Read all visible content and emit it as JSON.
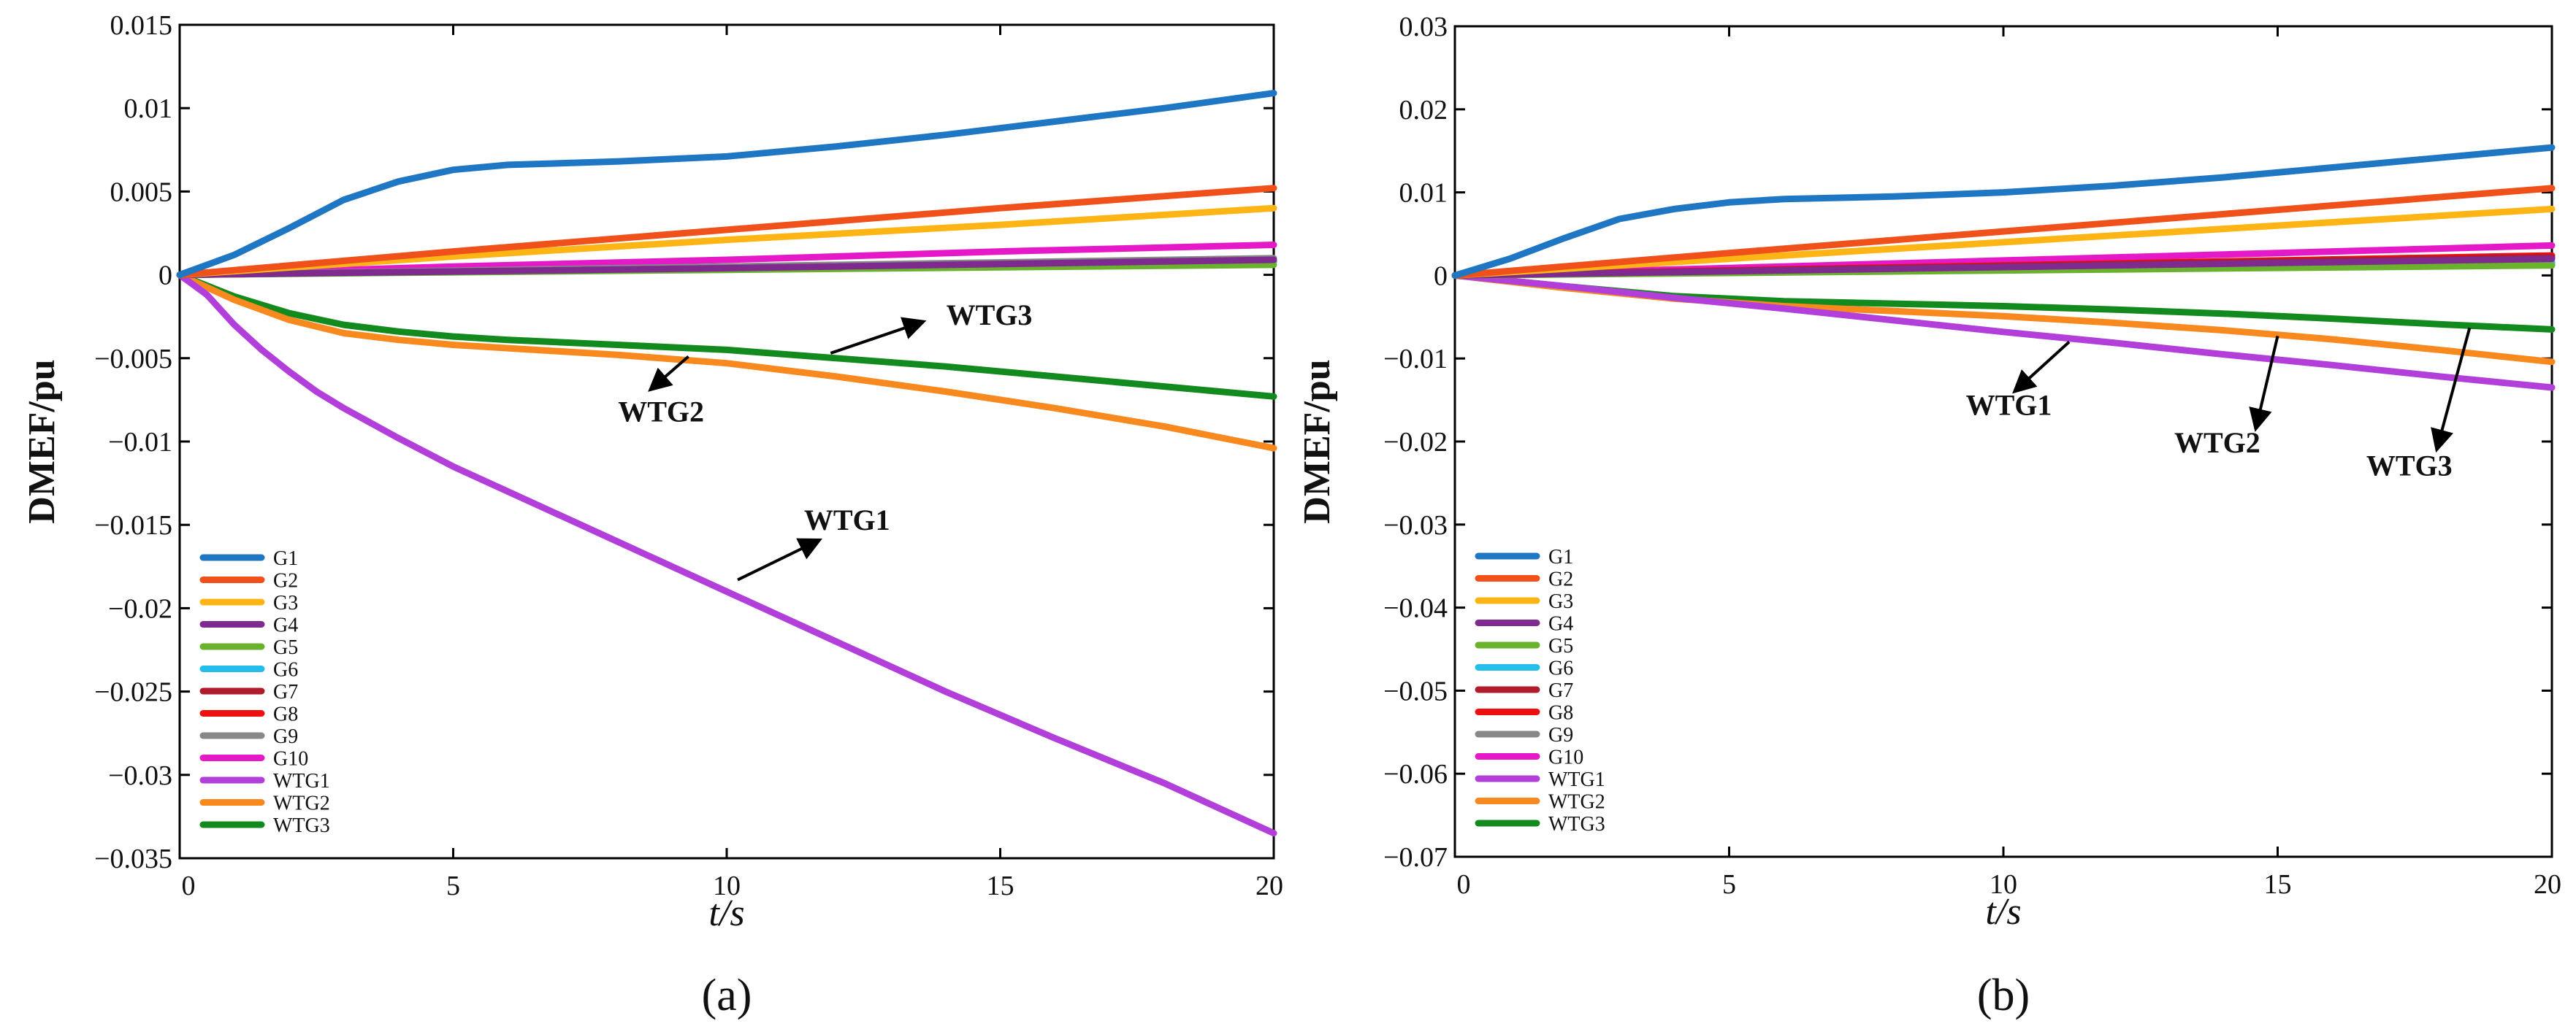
{
  "chart_data": [
    {
      "panel_label": "(a)",
      "type": "line",
      "xlabel": "t/s",
      "ylabel": "DMEF/pu",
      "xlim": [
        0,
        20
      ],
      "ylim": [
        -0.035,
        0.015
      ],
      "xticks": [
        "0",
        "5",
        "10",
        "15",
        "20"
      ],
      "yticks": [
        "0.015",
        "0.01",
        "0.005",
        "0",
        "−0.005",
        "−0.01",
        "−0.015",
        "−0.02",
        "−0.025",
        "−0.03",
        "−0.035"
      ],
      "legend": [
        "G1",
        "G2",
        "G3",
        "G4",
        "G5",
        "G6",
        "G7",
        "G8",
        "G9",
        "G10",
        "WTG1",
        "WTG2",
        "WTG3"
      ],
      "legend_position": "bottom-left",
      "series": [
        {
          "name": "G1",
          "color": "#1f77c4",
          "x": [
            0,
            1,
            2,
            3,
            4,
            5,
            6,
            8,
            10,
            12,
            14,
            16,
            18,
            20
          ],
          "values": [
            0,
            0.0012,
            0.0028,
            0.0045,
            0.0056,
            0.0063,
            0.0066,
            0.0068,
            0.0071,
            0.0077,
            0.0084,
            0.0092,
            0.01,
            0.0109
          ]
        },
        {
          "name": "G2",
          "color": "#f0501a",
          "x": [
            0,
            5,
            10,
            15,
            20
          ],
          "values": [
            0,
            0.0014,
            0.0027,
            0.004,
            0.0052
          ]
        },
        {
          "name": "G3",
          "color": "#fdb515",
          "x": [
            0,
            5,
            10,
            15,
            20
          ],
          "values": [
            0,
            0.0011,
            0.0021,
            0.003,
            0.004
          ]
        },
        {
          "name": "G4",
          "color": "#7f2a8e",
          "x": [
            0,
            10,
            20
          ],
          "values": [
            0,
            0.0004,
            0.0009
          ]
        },
        {
          "name": "G5",
          "color": "#6ab22e",
          "x": [
            0,
            10,
            20
          ],
          "values": [
            0,
            0.0003,
            0.0006
          ]
        },
        {
          "name": "G6",
          "color": "#25bdea",
          "x": [
            0,
            10,
            20
          ],
          "values": [
            0,
            0.0004,
            0.0008
          ]
        },
        {
          "name": "G7",
          "color": "#b01b2e",
          "x": [
            0,
            10,
            20
          ],
          "values": [
            0,
            0.0004,
            0.0008
          ]
        },
        {
          "name": "G8",
          "color": "#ee1010",
          "x": [
            0,
            10,
            20
          ],
          "values": [
            0,
            0.0004,
            0.0008
          ]
        },
        {
          "name": "G9",
          "color": "#888888",
          "x": [
            0,
            10,
            20
          ],
          "values": [
            0,
            0.0005,
            0.001
          ]
        },
        {
          "name": "G10",
          "color": "#e619c8",
          "x": [
            0,
            5,
            10,
            15,
            20
          ],
          "values": [
            0,
            0.0005,
            0.0009,
            0.0014,
            0.0018
          ]
        },
        {
          "name": "WTG1",
          "color": "#b23fd9",
          "x": [
            0,
            0.5,
            1,
            1.5,
            2,
            2.5,
            3,
            4,
            5,
            6,
            8,
            10,
            12,
            14,
            16,
            18,
            20
          ],
          "values": [
            0,
            -0.0012,
            -0.003,
            -0.0045,
            -0.0058,
            -0.007,
            -0.008,
            -0.0098,
            -0.0115,
            -0.013,
            -0.016,
            -0.019,
            -0.022,
            -0.025,
            -0.0278,
            -0.0305,
            -0.0335
          ]
        },
        {
          "name": "WTG2",
          "color": "#f7891f",
          "x": [
            0,
            1,
            2,
            3,
            4,
            5,
            6,
            8,
            10,
            12,
            14,
            16,
            18,
            20
          ],
          "values": [
            0,
            -0.0015,
            -0.0027,
            -0.0035,
            -0.0039,
            -0.0042,
            -0.0044,
            -0.0048,
            -0.0053,
            -0.0061,
            -0.007,
            -0.008,
            -0.0091,
            -0.0104
          ]
        },
        {
          "name": "WTG3",
          "color": "#138a1e",
          "x": [
            0,
            1,
            2,
            3,
            4,
            5,
            6,
            8,
            10,
            12,
            14,
            16,
            18,
            20
          ],
          "values": [
            0,
            -0.0013,
            -0.0023,
            -0.003,
            -0.0034,
            -0.0037,
            -0.0039,
            -0.0042,
            -0.0045,
            -0.005,
            -0.0055,
            -0.0061,
            -0.0067,
            -0.0073
          ]
        }
      ],
      "annotations": [
        {
          "text": "WTG1",
          "x": 12.2,
          "y": -0.0153,
          "arrow_from": [
            10.2,
            -0.0183
          ],
          "arrow_to": [
            11.7,
            -0.0159
          ]
        },
        {
          "text": "WTG2",
          "x": 8.8,
          "y": -0.0088,
          "arrow_from": [
            9.3,
            -0.0049
          ],
          "arrow_to": [
            8.6,
            -0.0069
          ]
        },
        {
          "text": "WTG3",
          "x": 14.8,
          "y": -0.003,
          "arrow_from": [
            11.9,
            -0.0047
          ],
          "arrow_to": [
            13.6,
            -0.0028
          ]
        }
      ]
    },
    {
      "panel_label": "(b)",
      "type": "line",
      "xlabel": "t/s",
      "ylabel": "DMEF/pu",
      "xlim": [
        0,
        20
      ],
      "ylim": [
        -0.07,
        0.03
      ],
      "xticks": [
        "0",
        "5",
        "10",
        "15",
        "20"
      ],
      "yticks": [
        "0.03",
        "0.02",
        "0.01",
        "0",
        "−0.01",
        "−0.02",
        "−0.03",
        "−0.04",
        "−0.05",
        "−0.06",
        "−0.07"
      ],
      "legend": [
        "G1",
        "G2",
        "G3",
        "G4",
        "G5",
        "G6",
        "G7",
        "G8",
        "G9",
        "G10",
        "WTG1",
        "WTG2",
        "WTG3"
      ],
      "legend_position": "bottom-left",
      "series": [
        {
          "name": "G1",
          "color": "#1f77c4",
          "x": [
            0,
            1,
            2,
            3,
            4,
            5,
            6,
            8,
            10,
            12,
            14,
            16,
            18,
            20
          ],
          "values": [
            0,
            0.002,
            0.0045,
            0.0068,
            0.008,
            0.0088,
            0.0092,
            0.0095,
            0.01,
            0.0108,
            0.0118,
            0.013,
            0.0142,
            0.0154
          ]
        },
        {
          "name": "G2",
          "color": "#f0501a",
          "x": [
            0,
            5,
            10,
            15,
            20
          ],
          "values": [
            0,
            0.0027,
            0.0053,
            0.0079,
            0.0105
          ]
        },
        {
          "name": "G3",
          "color": "#fdb515",
          "x": [
            0,
            5,
            10,
            15,
            20
          ],
          "values": [
            0,
            0.002,
            0.004,
            0.006,
            0.008
          ]
        },
        {
          "name": "G4",
          "color": "#7f2a8e",
          "x": [
            0,
            10,
            20
          ],
          "values": [
            0,
            0.001,
            0.002
          ]
        },
        {
          "name": "G5",
          "color": "#6ab22e",
          "x": [
            0,
            10,
            20
          ],
          "values": [
            0,
            0.0006,
            0.0012
          ]
        },
        {
          "name": "G6",
          "color": "#25bdea",
          "x": [
            0,
            10,
            20
          ],
          "values": [
            0,
            0.0008,
            0.0016
          ]
        },
        {
          "name": "G7",
          "color": "#b01b2e",
          "x": [
            0,
            10,
            20
          ],
          "values": [
            0,
            0.0011,
            0.0022
          ]
        },
        {
          "name": "G8",
          "color": "#ee1010",
          "x": [
            0,
            10,
            20
          ],
          "values": [
            0,
            0.0012,
            0.0024
          ]
        },
        {
          "name": "G9",
          "color": "#888888",
          "x": [
            0,
            10,
            20
          ],
          "values": [
            0,
            0.0007,
            0.0014
          ]
        },
        {
          "name": "G10",
          "color": "#e619c8",
          "x": [
            0,
            5,
            10,
            15,
            20
          ],
          "values": [
            0,
            0.0009,
            0.0018,
            0.0027,
            0.0036
          ]
        },
        {
          "name": "WTG1",
          "color": "#b23fd9",
          "x": [
            0,
            2,
            4,
            6,
            8,
            10,
            12,
            14,
            16,
            18,
            20
          ],
          "values": [
            0,
            -0.0013,
            -0.0027,
            -0.004,
            -0.0054,
            -0.0068,
            -0.0081,
            -0.0095,
            -0.0108,
            -0.0122,
            -0.0135
          ]
        },
        {
          "name": "WTG2",
          "color": "#f7891f",
          "x": [
            0,
            2,
            4,
            6,
            8,
            10,
            12,
            14,
            16,
            18,
            20
          ],
          "values": [
            0,
            -0.0015,
            -0.0028,
            -0.0037,
            -0.0043,
            -0.0049,
            -0.0057,
            -0.0066,
            -0.0077,
            -0.009,
            -0.0104
          ]
        },
        {
          "name": "WTG3",
          "color": "#138a1e",
          "x": [
            0,
            2,
            4,
            6,
            8,
            10,
            12,
            14,
            16,
            18,
            20
          ],
          "values": [
            0,
            -0.0013,
            -0.0025,
            -0.0031,
            -0.0034,
            -0.0037,
            -0.0041,
            -0.0046,
            -0.0052,
            -0.0059,
            -0.0065
          ]
        }
      ],
      "annotations": [
        {
          "text": "WTG1",
          "x": 10.1,
          "y": -0.0168,
          "arrow_from": [
            11.2,
            -0.008
          ],
          "arrow_to": [
            10.2,
            -0.014
          ]
        },
        {
          "text": "WTG2",
          "x": 13.9,
          "y": -0.0213,
          "arrow_from": [
            15.0,
            -0.0073
          ],
          "arrow_to": [
            14.6,
            -0.0185
          ]
        },
        {
          "text": "WTG3",
          "x": 17.4,
          "y": -0.0241,
          "arrow_from": [
            18.5,
            -0.0063
          ],
          "arrow_to": [
            17.9,
            -0.021
          ]
        }
      ]
    }
  ]
}
